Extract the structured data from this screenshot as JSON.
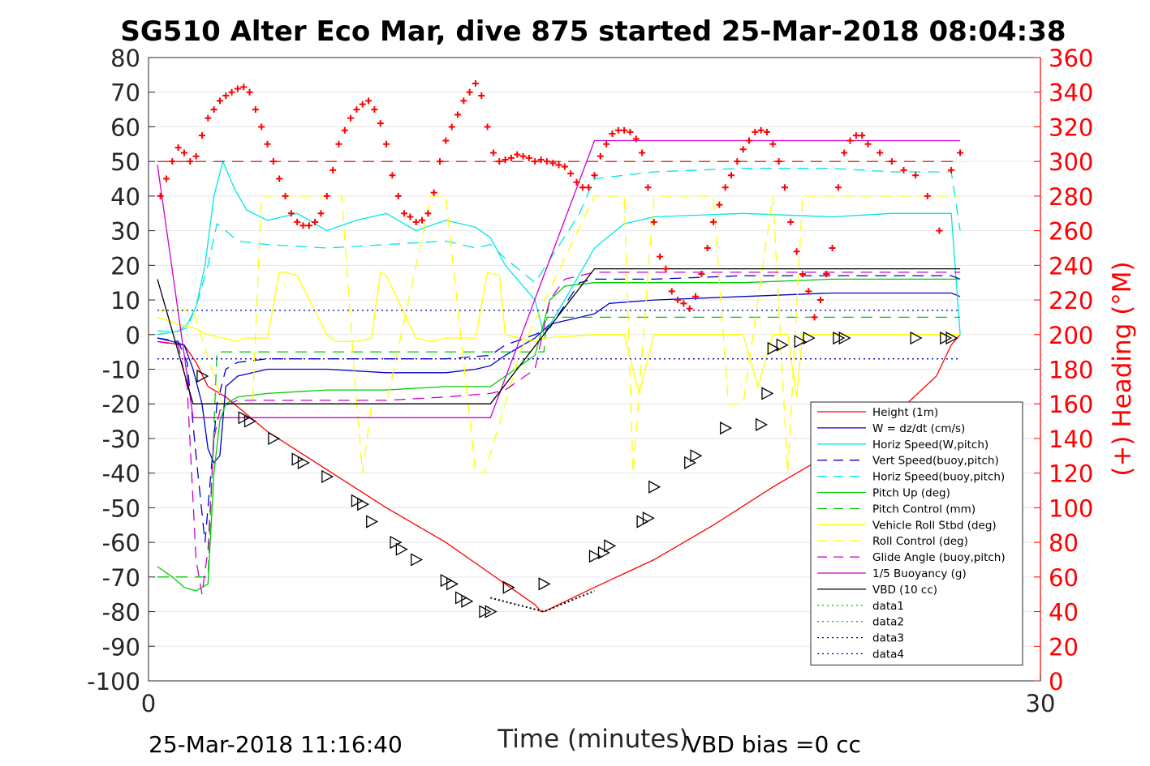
{
  "chart_data": {
    "type": "line",
    "title": "SG510 Alter Eco Mar, dive 875 started 25-Mar-2018 08:04:38",
    "xlabel": "Time (minutes)",
    "ylabel_left": "",
    "ylabel_right": "(+) Heading (°M)",
    "xlim": [
      0,
      30
    ],
    "ylim_left": [
      -100,
      80
    ],
    "ylim_right": [
      0,
      360
    ],
    "xticks": [
      "0",
      "30"
    ],
    "yticks_left": [
      "80",
      "70",
      "60",
      "50",
      "40",
      "30",
      "20",
      "10",
      "0",
      "-10",
      "-20",
      "-30",
      "-40",
      "-50",
      "-60",
      "-70",
      "-80",
      "-90",
      "-100"
    ],
    "yticks_right": [
      "360",
      "340",
      "320",
      "300",
      "280",
      "260",
      "240",
      "220",
      "200",
      "180",
      "160",
      "140",
      "120",
      "100",
      "80",
      "60",
      "40",
      "20",
      "0"
    ],
    "footer_left": "25-Mar-2018 11:16:40",
    "footer_right": "VBD bias =0 cc",
    "colors": {
      "red": "#ff0000",
      "blue": "#0000cc",
      "cyan": "#00e5e5",
      "green": "#00cc00",
      "yellow": "#ffff00",
      "magenta": "#cc00cc",
      "black": "#000000",
      "right_axis": "#ff0000"
    },
    "legend": [
      {
        "label": "Height (1m)",
        "color": "#ff0000",
        "dash": "solid"
      },
      {
        "label": "W = dz/dt (cm/s)",
        "color": "#0000cc",
        "dash": "solid"
      },
      {
        "label": "Horiz Speed(W,pitch)",
        "color": "#00e5e5",
        "dash": "solid"
      },
      {
        "label": "Vert Speed(buoy,pitch)",
        "color": "#0000cc",
        "dash": "dashed"
      },
      {
        "label": "Horiz Speed(buoy,pitch)",
        "color": "#00e5e5",
        "dash": "dashed"
      },
      {
        "label": "Pitch Up (deg)",
        "color": "#00cc00",
        "dash": "solid"
      },
      {
        "label": "Pitch Control (mm)",
        "color": "#00cc00",
        "dash": "dashed"
      },
      {
        "label": "Vehicle Roll Stbd (deg)",
        "color": "#ffff00",
        "dash": "solid"
      },
      {
        "label": "Roll Control (deg)",
        "color": "#ffff00",
        "dash": "dashed"
      },
      {
        "label": "Glide Angle (buoy,pitch)",
        "color": "#cc00cc",
        "dash": "dashed"
      },
      {
        "label": "1/5 Buoyancy (g)",
        "color": "#cc00cc",
        "dash": "solid"
      },
      {
        "label": "VBD (10 cc)",
        "color": "#000000",
        "dash": "solid"
      },
      {
        "label": "data1",
        "color": "#00cc00",
        "dash": "dotted"
      },
      {
        "label": "data2",
        "color": "#00cc00",
        "dash": "dotted"
      },
      {
        "label": "data3",
        "color": "#0000cc",
        "dash": "dotted"
      },
      {
        "label": "data4",
        "color": "#0000cc",
        "dash": "dotted"
      }
    ],
    "series": [
      {
        "name": "Height (1m)",
        "axis": "left",
        "color": "#ff0000",
        "dash": "solid",
        "x": [
          0.3,
          1.2,
          1.6,
          2.0,
          2.6,
          4.0,
          6.0,
          8.0,
          10.0,
          11.5,
          13.0,
          13.2,
          13.3,
          15.0,
          17.0,
          19.0,
          21.0,
          23.0,
          25.0,
          26.5,
          27.0,
          27.3
        ],
        "y": [
          -2,
          -3,
          -8,
          -15,
          -18,
          -28,
          -39,
          -50,
          -60,
          -69,
          -78,
          -80,
          -80,
          -73,
          -65,
          -55,
          -44,
          -34,
          -24,
          -12,
          -3,
          0
        ]
      },
      {
        "name": "W = dz/dt (cm/s)",
        "axis": "left",
        "color": "#0000cc",
        "dash": "solid",
        "x": [
          0.3,
          0.8,
          1.2,
          1.5,
          1.8,
          2.0,
          2.2,
          2.4,
          2.6,
          3.0,
          4.0,
          6.0,
          8.0,
          10.0,
          11.0,
          11.5,
          12.0,
          13.0,
          13.5,
          14.0,
          15.0,
          15.5,
          17.0,
          20.0,
          23.0,
          25.0,
          27.0,
          27.3
        ],
        "y": [
          -1,
          -2,
          -3,
          -10,
          -20,
          -33,
          -37,
          -35,
          -15,
          -12,
          -10,
          -10,
          -11,
          -11,
          -10,
          -9,
          -6,
          -1,
          3,
          4,
          6,
          9,
          10,
          11,
          12,
          12,
          12,
          11
        ]
      },
      {
        "name": "Horiz Speed(W,pitch)",
        "axis": "left",
        "color": "#00e5e5",
        "dash": "solid",
        "x": [
          0.3,
          1.0,
          1.3,
          1.6,
          1.9,
          2.2,
          2.5,
          2.9,
          3.3,
          4.0,
          5.0,
          6.0,
          7.0,
          8.0,
          9.0,
          10.0,
          11.0,
          11.5,
          12.0,
          13.0,
          13.3,
          14.0,
          15.0,
          16.0,
          17.0,
          20.0,
          23.0,
          25.0,
          27.0,
          27.3
        ],
        "y": [
          0,
          1,
          3,
          8,
          20,
          40,
          50,
          42,
          36,
          33,
          35,
          30,
          33,
          35,
          30,
          33,
          31,
          28,
          20,
          10,
          0,
          10,
          25,
          32,
          34,
          35,
          34,
          35,
          35,
          0
        ]
      },
      {
        "name": "Vert Speed(buoy,pitch)",
        "axis": "left",
        "color": "#0000cc",
        "dash": "dashed",
        "x": [
          0.3,
          1.0,
          1.3,
          1.6,
          1.9,
          2.1,
          2.3,
          2.6,
          3.0,
          4.0,
          6.0,
          8.0,
          10.0,
          11.5,
          12.0,
          13.0,
          13.5,
          14.5,
          15.0,
          17.0,
          20.0,
          23.0,
          25.0,
          27.0,
          27.3
        ],
        "y": [
          -1,
          -2,
          -8,
          -35,
          -60,
          -40,
          -20,
          -10,
          -8,
          -7,
          -7,
          -7,
          -7,
          -6,
          -3,
          0,
          2,
          15,
          16,
          16,
          17,
          17,
          17,
          17,
          16
        ]
      },
      {
        "name": "Horiz Speed(buoy,pitch)",
        "axis": "left",
        "color": "#00e5e5",
        "dash": "dashed",
        "x": [
          0.3,
          1.0,
          1.3,
          1.6,
          2.0,
          2.3,
          2.6,
          3.0,
          4.0,
          6.0,
          8.0,
          10.0,
          11.0,
          11.5,
          12.0,
          13.0,
          14.5,
          15.0,
          17.0,
          20.0,
          23.0,
          25.0,
          27.0,
          27.3
        ],
        "y": [
          1,
          1,
          2,
          8,
          20,
          32,
          30,
          27,
          26,
          25,
          26,
          27,
          25,
          26,
          22,
          15,
          35,
          45,
          47,
          48,
          48,
          47,
          47,
          30
        ]
      },
      {
        "name": "Pitch Up (deg)",
        "axis": "left",
        "color": "#00cc00",
        "dash": "solid",
        "x": [
          0.3,
          0.8,
          1.2,
          1.6,
          2.0,
          2.2,
          2.4,
          2.6,
          3.0,
          4.0,
          6.0,
          8.0,
          10.0,
          11.5,
          12.0,
          12.5,
          13.0,
          13.5,
          14.0,
          15.0,
          17.0,
          20.0,
          23.0,
          25.0,
          27.0,
          27.3
        ],
        "y": [
          -67,
          -70,
          -73,
          -74,
          -72,
          -40,
          -25,
          -20,
          -18,
          -17,
          -16,
          -16,
          -15,
          -15,
          -12,
          -9,
          -6,
          10,
          14,
          15,
          15,
          15,
          16,
          16,
          16,
          16
        ]
      },
      {
        "name": "Pitch Control (mm)",
        "axis": "left",
        "color": "#00cc00",
        "dash": "dashed",
        "x": [
          0.3,
          1.5,
          2.0,
          2.3,
          13.3,
          13.4,
          27.3
        ],
        "y": [
          -70,
          -70,
          -70,
          -5,
          -5,
          5,
          5
        ]
      },
      {
        "name": "Vehicle Roll Stbd (deg)",
        "axis": "left",
        "color": "#ffff00",
        "dash": "solid",
        "x": [
          0.3,
          1.0,
          1.5,
          2.0,
          3.0,
          3.2,
          3.5,
          4.0,
          4.4,
          4.6,
          5.0,
          6.0,
          6.3,
          7.0,
          7.5,
          7.8,
          8.0,
          9.0,
          9.5,
          10.0,
          11.0,
          11.4,
          11.8,
          12.0,
          13.0,
          13.3,
          15.0,
          16.0,
          16.5,
          17.0,
          20.0,
          20.5,
          21.0,
          21.5,
          21.8,
          22.0,
          22.5,
          25.0,
          26.0,
          26.5,
          27.3
        ],
        "y": [
          5,
          3,
          2,
          0,
          -2,
          -1,
          -1,
          -1,
          18,
          18,
          17,
          0,
          -2,
          -2,
          -1,
          18,
          17,
          -1,
          -2,
          -1,
          -1,
          18,
          17,
          0,
          -2,
          -1,
          0,
          0,
          -17,
          0,
          0,
          -15,
          0,
          0,
          -18,
          0,
          0,
          0,
          0,
          0,
          0
        ]
      },
      {
        "name": "Roll Control (deg)",
        "axis": "left",
        "color": "#ffff00",
        "dash": "dashed",
        "x": [
          0.3,
          1.5,
          2.5,
          3.0,
          3.5,
          3.8,
          4.0,
          5.5,
          6.0,
          6.5,
          7.0,
          7.2,
          7.5,
          8.0,
          9.5,
          10.0,
          11.0,
          11.3,
          12.0,
          12.5,
          15.0,
          15.5,
          16.0,
          16.3,
          17.0,
          19.0,
          19.5,
          20.0,
          21.0,
          21.5,
          22.0,
          24.0,
          24.5,
          27.0,
          27.3
        ],
        "y": [
          7,
          7,
          -20,
          -20,
          -20,
          40,
          40,
          40,
          40,
          40,
          -20,
          -40,
          -20,
          -20,
          40,
          40,
          -40,
          -40,
          -20,
          -5,
          40,
          40,
          40,
          -40,
          40,
          40,
          -20,
          -20,
          40,
          -40,
          40,
          40,
          40,
          40,
          40
        ]
      },
      {
        "name": "Glide Angle (buoy,pitch)",
        "axis": "left",
        "color": "#cc00cc",
        "dash": "dashed",
        "x": [
          0.3,
          1.0,
          1.3,
          1.6,
          1.8,
          2.0,
          2.2,
          2.4,
          2.7,
          3.0,
          4.0,
          6.0,
          8.0,
          10.0,
          11.5,
          12.0,
          13.0,
          13.5,
          14.0,
          15.0,
          17.0,
          20.0,
          23.0,
          25.0,
          27.0,
          27.3
        ],
        "y": [
          -2,
          -3,
          -15,
          -65,
          -75,
          -62,
          -30,
          -22,
          -20,
          -19,
          -19,
          -19,
          -19,
          -18,
          -17,
          -16,
          -10,
          10,
          16,
          18,
          18,
          18,
          18,
          18,
          18,
          18
        ]
      },
      {
        "name": "1/5 Buoyancy (g)",
        "axis": "left",
        "color": "#cc00cc",
        "dash": "solid",
        "x": [
          0.3,
          1.5,
          11.5,
          15.0,
          27.3
        ],
        "y": [
          49,
          -24,
          -24,
          56,
          56
        ]
      },
      {
        "name": "VBD (10 cc)",
        "axis": "left",
        "color": "#000000",
        "dash": "solid",
        "x": [
          0.3,
          1.5,
          11.5,
          15.0,
          27.3
        ],
        "y": [
          16,
          -20,
          -20,
          19,
          19
        ]
      },
      {
        "name": "data1",
        "axis": "left",
        "color": "#00cc00",
        "dash": "dotted",
        "x": [
          0.3,
          27.3
        ],
        "y": [
          7,
          7
        ]
      },
      {
        "name": "data2",
        "axis": "left",
        "color": "#00cc00",
        "dash": "dotted",
        "x": [
          0.3,
          27.3
        ],
        "y": [
          -7,
          -7
        ]
      },
      {
        "name": "data3",
        "axis": "left",
        "color": "#0000cc",
        "dash": "dotted",
        "x": [
          0.3,
          27.3
        ],
        "y": [
          7,
          7
        ]
      },
      {
        "name": "data4",
        "axis": "left",
        "color": "#0000cc",
        "dash": "dotted",
        "x": [
          0.3,
          27.3
        ],
        "y": [
          -7,
          -7
        ]
      }
    ],
    "heading_reference": {
      "axis": "right",
      "value": 300,
      "color": "#cc0000",
      "dash": "dashed",
      "x": [
        0.3,
        27.3
      ]
    },
    "heading_points": {
      "axis": "right",
      "color": "#ff0000",
      "marker": "+",
      "x": [
        0.4,
        0.6,
        0.8,
        1.0,
        1.2,
        1.4,
        1.6,
        1.8,
        2.0,
        2.2,
        2.4,
        2.6,
        2.8,
        3.0,
        3.2,
        3.4,
        3.6,
        3.8,
        4.0,
        4.2,
        4.4,
        4.6,
        4.8,
        5.0,
        5.2,
        5.4,
        5.6,
        5.8,
        6.0,
        6.2,
        6.4,
        6.6,
        6.8,
        7.0,
        7.2,
        7.4,
        7.6,
        7.8,
        8.0,
        8.2,
        8.4,
        8.6,
        8.8,
        9.0,
        9.2,
        9.4,
        9.6,
        9.8,
        10.0,
        10.2,
        10.4,
        10.6,
        10.8,
        11.0,
        11.2,
        11.4,
        11.6,
        11.8,
        12.0,
        12.2,
        12.4,
        12.6,
        12.8,
        13.0,
        13.2,
        13.4,
        13.6,
        13.8,
        14.0,
        14.2,
        14.4,
        14.6,
        14.8,
        15.0,
        15.2,
        15.4,
        15.6,
        15.8,
        16.0,
        16.2,
        16.4,
        16.6,
        16.8,
        17.0,
        17.2,
        17.4,
        17.6,
        17.8,
        18.0,
        18.2,
        18.4,
        18.6,
        18.8,
        19.0,
        19.2,
        19.4,
        19.6,
        19.8,
        20.0,
        20.2,
        20.4,
        20.6,
        20.8,
        21.0,
        21.2,
        21.4,
        21.6,
        21.8,
        22.0,
        22.2,
        22.4,
        22.6,
        22.8,
        23.0,
        23.2,
        23.4,
        23.6,
        23.8,
        24.0,
        24.2,
        24.6,
        25.0,
        25.4,
        25.8,
        26.2,
        26.6,
        27.0,
        27.3
      ],
      "y": [
        280,
        290,
        300,
        308,
        305,
        300,
        303,
        315,
        325,
        330,
        335,
        338,
        340,
        342,
        343,
        340,
        330,
        320,
        310,
        300,
        290,
        280,
        270,
        265,
        263,
        263,
        265,
        270,
        280,
        295,
        310,
        318,
        325,
        330,
        333,
        335,
        330,
        322,
        310,
        292,
        280,
        270,
        268,
        265,
        266,
        270,
        282,
        300,
        312,
        320,
        327,
        335,
        340,
        345,
        338,
        320,
        305,
        300,
        301,
        302,
        304,
        303,
        302,
        300,
        301,
        300,
        299,
        298,
        297,
        293,
        288,
        285,
        285,
        292,
        303,
        310,
        316,
        318,
        318,
        317,
        313,
        305,
        285,
        265,
        245,
        238,
        225,
        220,
        218,
        215,
        222,
        235,
        250,
        265,
        275,
        285,
        292,
        300,
        307,
        312,
        317,
        318,
        317,
        310,
        300,
        285,
        265,
        248,
        235,
        225,
        210,
        220,
        235,
        250,
        285,
        305,
        312,
        315,
        315,
        310,
        305,
        300,
        295,
        292,
        280,
        260,
        295,
        305
      ],
      "extra_x": [
        24.0,
        24.4,
        24.8,
        25.2,
        25.6,
        26.0,
        26.4,
        26.8,
        27.1,
        27.3
      ],
      "extra_y": [
        279,
        272,
        266,
        264,
        265,
        268,
        272,
        283,
        292,
        303
      ]
    },
    "depth_markers": {
      "axis": "left",
      "color": "#000000",
      "marker": "triangle",
      "x": [
        1.8,
        3.2,
        3.4,
        4.2,
        5.0,
        5.2,
        6.0,
        7.0,
        7.2,
        7.5,
        8.3,
        8.5,
        9.0,
        10.0,
        10.2,
        10.5,
        10.7,
        11.3,
        11.5,
        12.1,
        13.3,
        15.0,
        15.3,
        15.5,
        16.6,
        16.8,
        17.0,
        18.2,
        18.4,
        19.4,
        20.6,
        20.8,
        21.0,
        21.3,
        21.9,
        22.2,
        23.2,
        23.4,
        25.8,
        26.8,
        27.0
      ],
      "y": [
        -12,
        -24,
        -25,
        -30,
        -36,
        -37,
        -41,
        -48,
        -49,
        -54,
        -60,
        -62,
        -65,
        -71,
        -72,
        -76,
        -77,
        -80,
        -80,
        -73,
        -72,
        -64,
        -63,
        -61,
        -54,
        -53,
        -44,
        -37,
        -35,
        -27,
        -26,
        -17,
        -4,
        -3,
        -2,
        -1,
        -1,
        -1,
        -1,
        -1,
        -1
      ]
    },
    "grid": true,
    "legend_position": "bottom-right"
  }
}
